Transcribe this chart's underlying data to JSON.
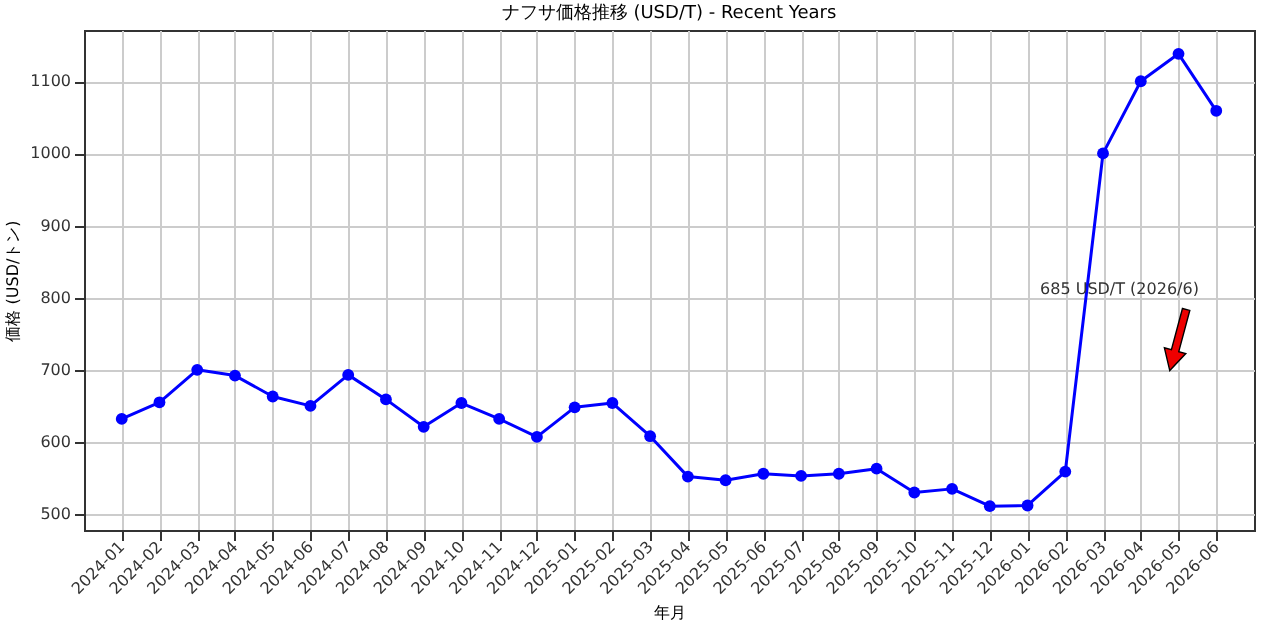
{
  "chart_data": {
    "type": "line",
    "title": "ナフサ価格推移 (USD/T) - Recent Years",
    "xlabel": "年月",
    "ylabel": "価格 (USD/トン)",
    "categories": [
      "2024-01",
      "2024-02",
      "2024-03",
      "2024-04",
      "2024-05",
      "2024-06",
      "2024-07",
      "2024-08",
      "2024-09",
      "2024-10",
      "2024-11",
      "2024-12",
      "2025-01",
      "2025-02",
      "2025-03",
      "2025-04",
      "2025-05",
      "2025-06",
      "2025-07",
      "2025-08",
      "2025-09",
      "2025-10",
      "2025-11",
      "2025-12",
      "2026-01",
      "2026-02",
      "2026-03",
      "2026-04",
      "2026-05",
      "2026-06"
    ],
    "series": [
      {
        "color": "#0000ff",
        "values": [
          632,
          655,
          700,
          692,
          663,
          650,
          693,
          659,
          621,
          654,
          632,
          607,
          648,
          654,
          608,
          552,
          547,
          556,
          553,
          556,
          563,
          530,
          535,
          511,
          512,
          559,
          1000,
          1100,
          1138,
          1059
        ]
      }
    ],
    "ylim": [
      478,
      1171
    ],
    "yticks": [
      500,
      600,
      700,
      800,
      900,
      {
        "value": 1000,
        "label": "1000"
      },
      {
        "value": 1100,
        "label": "1100"
      }
    ],
    "grid": true,
    "marker": "circle",
    "line_style": "solid",
    "annotations": [
      "685 USD/T (2026/6)"
    ]
  }
}
